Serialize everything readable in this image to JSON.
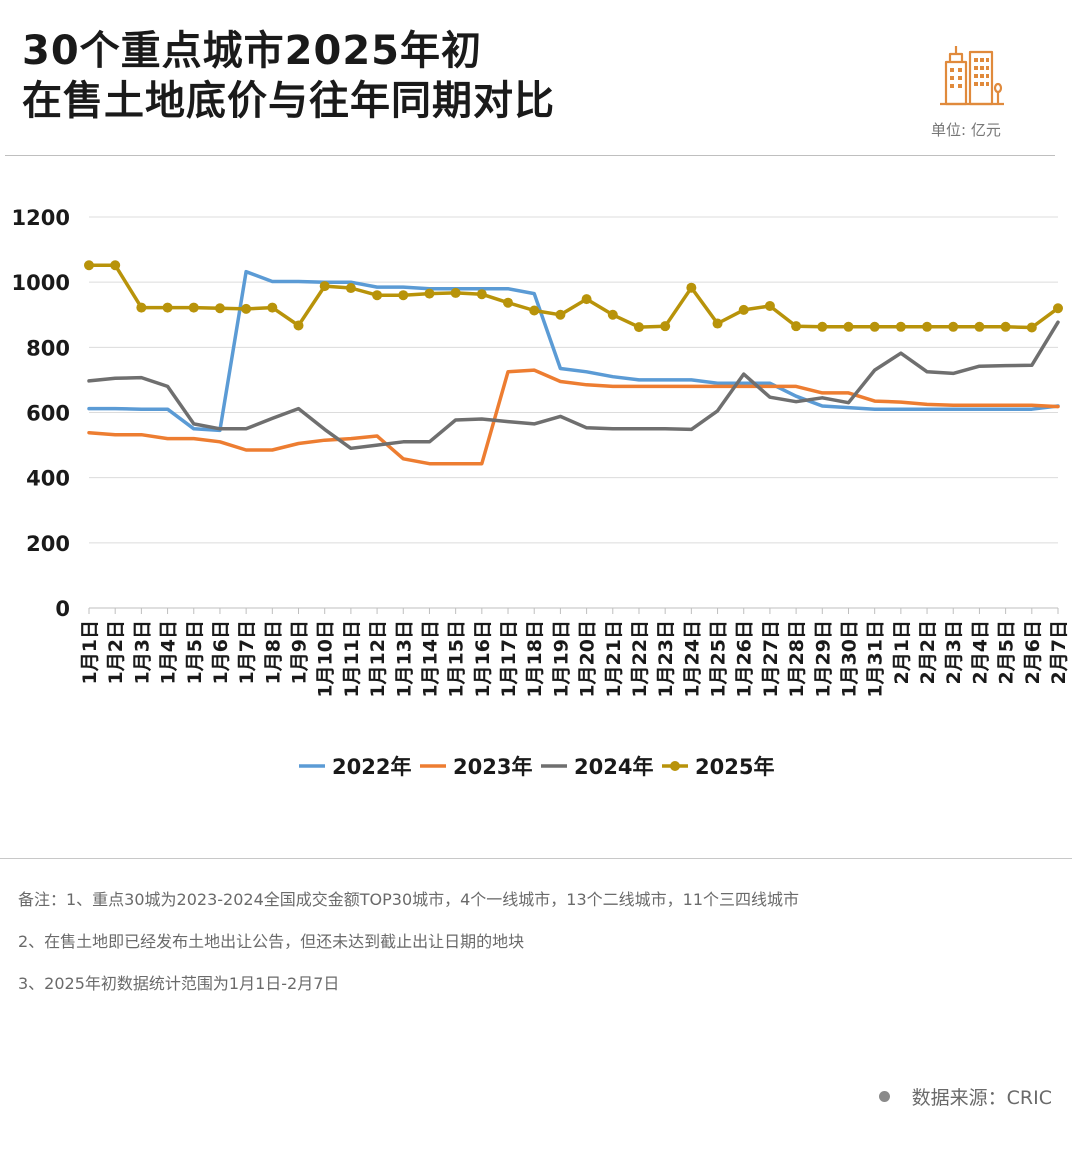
{
  "title": {
    "line1": "30个重点城市2025年初",
    "line2": "在售土地底价与往年同期对比"
  },
  "unit": "单位: 亿元",
  "logo_icon": "buildings-icon",
  "colors": {
    "accent": "#e08a3c",
    "s2022": "#5b9bd5",
    "s2023": "#ed7d31",
    "s2024": "#6f6f6f",
    "s2025": "#b8930a"
  },
  "notes": [
    "备注：1、重点30城为2023-2024全国成交金额TOP30城市，4个一线城市，13个二线城市，11个三四线城市",
    "2、在售土地即已经发布土地出让公告，但还未达到截止出让日期的地块",
    "3、2025年初数据统计范围为1月1日-2月7日"
  ],
  "source": "数据来源：CRIC",
  "chart_data": {
    "type": "line",
    "categories": [
      "1月1日",
      "1月2日",
      "1月3日",
      "1月4日",
      "1月5日",
      "1月6日",
      "1月7日",
      "1月8日",
      "1月9日",
      "1月10日",
      "1月11日",
      "1月12日",
      "1月13日",
      "1月14日",
      "1月15日",
      "1月16日",
      "1月17日",
      "1月18日",
      "1月19日",
      "1月20日",
      "1月21日",
      "1月22日",
      "1月23日",
      "1月24日",
      "1月25日",
      "1月26日",
      "1月27日",
      "1月28日",
      "1月29日",
      "1月30日",
      "1月31日",
      "2月1日",
      "2月2日",
      "2月3日",
      "2月4日",
      "2月5日",
      "2月6日",
      "2月7日"
    ],
    "ylim": [
      0,
      1200
    ],
    "yticks": [
      0,
      200,
      400,
      600,
      800,
      1000,
      1200
    ],
    "grid": true,
    "legend_position": "bottom",
    "series": [
      {
        "name": "2022年",
        "color": "#5b9bd5",
        "marker": false,
        "values": [
          612,
          612,
          610,
          610,
          550,
          545,
          1032,
          1002,
          1002,
          1000,
          1000,
          985,
          985,
          980,
          980,
          980,
          980,
          965,
          735,
          725,
          710,
          700,
          700,
          700,
          690,
          690,
          690,
          650,
          620,
          615,
          610,
          610,
          610,
          610,
          610,
          610,
          610,
          620
        ]
      },
      {
        "name": "2023年",
        "color": "#ed7d31",
        "marker": false,
        "values": [
          538,
          532,
          532,
          520,
          520,
          510,
          485,
          485,
          505,
          515,
          520,
          528,
          458,
          443,
          443,
          443,
          725,
          730,
          695,
          685,
          680,
          680,
          680,
          680,
          680,
          680,
          680,
          680,
          660,
          660,
          635,
          632,
          625,
          622,
          622,
          622,
          622,
          618
        ]
      },
      {
        "name": "2024年",
        "color": "#6f6f6f",
        "marker": false,
        "values": [
          697,
          705,
          707,
          680,
          565,
          550,
          550,
          582,
          612,
          548,
          490,
          500,
          510,
          510,
          577,
          580,
          572,
          565,
          588,
          553,
          550,
          550,
          550,
          548,
          605,
          718,
          647,
          633,
          645,
          630,
          730,
          782,
          725,
          720,
          742,
          744,
          745,
          877
        ]
      },
      {
        "name": "2025年",
        "color": "#b8930a",
        "marker": true,
        "values": [
          1052,
          1052,
          922,
          922,
          922,
          920,
          918,
          922,
          867,
          988,
          982,
          960,
          960,
          965,
          967,
          963,
          937,
          913,
          900,
          948,
          900,
          862,
          865,
          983,
          873,
          915,
          927,
          865,
          863,
          863,
          863,
          863,
          863,
          863,
          863,
          863,
          861,
          920
        ]
      }
    ]
  }
}
